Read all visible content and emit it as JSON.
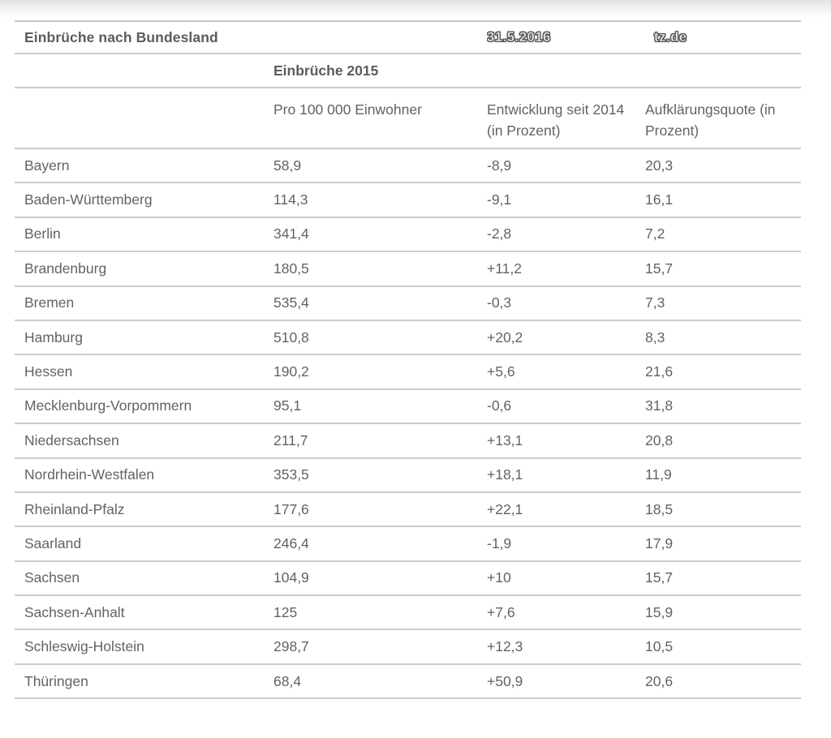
{
  "header": {
    "title": "Einbrüche nach Bundesland",
    "date": "31.5.2016",
    "source": "tz.de"
  },
  "chart_data": {
    "type": "table",
    "title": "Einbrüche nach Bundesland",
    "date": "31.5.2016",
    "source": "tz.de",
    "group_header": "Einbrüche 2015",
    "columns": [
      "Pro 100 000 Einwohner",
      "Entwicklung seit 2014 (in Prozent)",
      "Aufklärungsquote (in Prozent)"
    ],
    "rows": [
      [
        "Bayern",
        "58,9",
        "-8,9",
        "20,3"
      ],
      [
        "Baden-Württemberg",
        "114,3",
        "-9,1",
        "16,1"
      ],
      [
        "Berlin",
        "341,4",
        "-2,8",
        "7,2"
      ],
      [
        "Brandenburg",
        "180,5",
        "+11,2",
        "15,7"
      ],
      [
        "Bremen",
        "535,4",
        "-0,3",
        "7,3"
      ],
      [
        "Hamburg",
        "510,8",
        "+20,2",
        "8,3"
      ],
      [
        "Hessen",
        "190,2",
        "+5,6",
        "21,6"
      ],
      [
        "Mecklenburg-Vorpommern",
        "95,1",
        "-0,6",
        "31,8"
      ],
      [
        "Niedersachsen",
        "211,7",
        "+13,1",
        "20,8"
      ],
      [
        "Nordrhein-Westfalen",
        "353,5",
        "+18,1",
        "11,9"
      ],
      [
        "Rheinland-Pfalz",
        "177,6",
        "+22,1",
        "18,5"
      ],
      [
        "Saarland",
        "246,4",
        "-1,9",
        "17,9"
      ],
      [
        "Sachsen",
        "104,9",
        "+10",
        "15,7"
      ],
      [
        "Sachsen-Anhalt",
        "125",
        "+7,6",
        "15,9"
      ],
      [
        "Schleswig-Holstein",
        "298,7",
        "+12,3",
        "10,5"
      ],
      [
        "Thüringen",
        "68,4",
        "+50,9",
        "20,6"
      ]
    ],
    "colors": {
      "text": "#5f6368",
      "bold_text": "#595d61",
      "divider": "#cbcbcb"
    }
  }
}
